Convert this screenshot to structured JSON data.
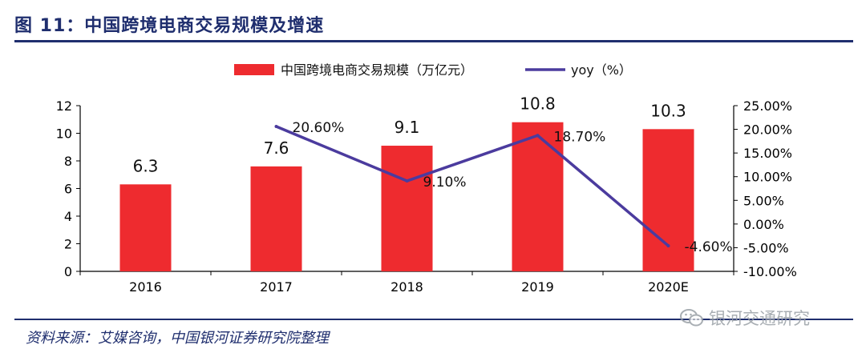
{
  "header": {
    "title": "图 11：中国跨境电商交易规模及增速"
  },
  "footer": {
    "source": "资料来源：艾媒咨询，中国银河证券研究院整理",
    "watermark": "银河交通研究"
  },
  "colors": {
    "bar": "#ee2b2f",
    "line": "#4b3b9e",
    "brand": "#1f2e6e"
  },
  "chart_data": {
    "type": "bar",
    "categories": [
      "2016",
      "2017",
      "2018",
      "2019",
      "2020E"
    ],
    "legend_position": "top-center",
    "grid": false,
    "series": [
      {
        "name": "中国跨境电商交易规模（万亿元）",
        "type": "bar",
        "axis": "left",
        "values": [
          6.3,
          7.6,
          9.1,
          10.8,
          10.3
        ],
        "labels": [
          "6.3",
          "7.6",
          "9.1",
          "10.8",
          "10.3"
        ]
      },
      {
        "name": "yoy（%）",
        "type": "line",
        "axis": "right",
        "values": [
          null,
          20.6,
          9.1,
          18.7,
          -4.6
        ],
        "labels": [
          "",
          "20.60%",
          "9.10%",
          "18.70%",
          "-4.60%"
        ]
      }
    ],
    "y_left": {
      "ylim": [
        0,
        12
      ],
      "ticks": [
        0,
        2,
        4,
        6,
        8,
        10,
        12
      ],
      "tick_labels": [
        "0",
        "2",
        "4",
        "6",
        "8",
        "10",
        "12"
      ]
    },
    "y_right": {
      "ylim": [
        -10,
        25
      ],
      "ticks": [
        -10,
        -5,
        0,
        5,
        10,
        15,
        20,
        25
      ],
      "tick_labels": [
        "-10.00%",
        "-5.00%",
        "0.00%",
        "5.00%",
        "10.00%",
        "15.00%",
        "20.00%",
        "25.00%"
      ]
    }
  }
}
